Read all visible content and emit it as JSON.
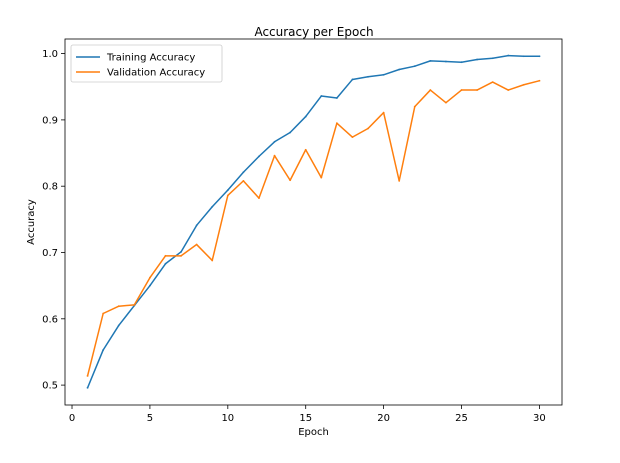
{
  "chart_data": {
    "type": "line",
    "title": "Accuracy per Epoch",
    "xlabel": "Epoch",
    "ylabel": "Accuracy",
    "xlim": [
      -0.45,
      31.45
    ],
    "ylim": [
      0.47,
      1.022
    ],
    "xticks": [
      0,
      5,
      10,
      15,
      20,
      25,
      30
    ],
    "yticks": [
      0.5,
      0.6,
      0.7,
      0.8,
      0.9,
      1.0
    ],
    "ytick_labels": [
      "0.5",
      "0.6",
      "0.7",
      "0.8",
      "0.9",
      "1.0"
    ],
    "grid": false,
    "legend_position": "top-left",
    "x": [
      1,
      2,
      3,
      4,
      5,
      6,
      7,
      8,
      9,
      10,
      11,
      12,
      13,
      14,
      15,
      16,
      17,
      18,
      19,
      20,
      21,
      22,
      23,
      24,
      25,
      26,
      27,
      28,
      29,
      30
    ],
    "series": [
      {
        "name": "Training Accuracy",
        "color": "#1f77b4",
        "values": [
          0.496,
          0.553,
          0.59,
          0.62,
          0.65,
          0.683,
          0.701,
          0.741,
          0.769,
          0.794,
          0.821,
          0.845,
          0.867,
          0.881,
          0.905,
          0.936,
          0.933,
          0.961,
          0.965,
          0.968,
          0.976,
          0.981,
          0.989,
          0.988,
          0.987,
          0.991,
          0.993,
          0.997,
          0.996,
          0.996
        ]
      },
      {
        "name": "Validation Accuracy",
        "color": "#ff7f0e",
        "values": [
          0.514,
          0.608,
          0.619,
          0.621,
          0.662,
          0.695,
          0.695,
          0.712,
          0.688,
          0.786,
          0.808,
          0.782,
          0.846,
          0.809,
          0.855,
          0.813,
          0.895,
          0.874,
          0.887,
          0.911,
          0.808,
          0.92,
          0.945,
          0.926,
          0.945,
          0.945,
          0.957,
          0.945,
          0.953,
          0.959
        ]
      }
    ]
  }
}
